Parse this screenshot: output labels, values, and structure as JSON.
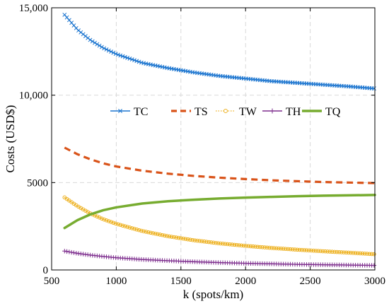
{
  "chart_data": {
    "type": "line",
    "xlabel": "k (spots/km)",
    "ylabel": "Costs (USD$)",
    "xlim": [
      500,
      3000
    ],
    "ylim": [
      0,
      15000
    ],
    "xticks": [
      500,
      1000,
      1500,
      2000,
      2500,
      3000
    ],
    "xtick_labels": [
      "500",
      "1000",
      "1500",
      "2000",
      "2500",
      "3000"
    ],
    "yticks": [
      0,
      5000,
      10000,
      15000
    ],
    "ytick_labels": [
      "0",
      "5000",
      "10,000",
      "15,000"
    ],
    "grid": true,
    "legend_position": "center",
    "legend_orientation": "horizontal",
    "x": [
      600,
      700,
      800,
      900,
      1000,
      1200,
      1400,
      1600,
      1800,
      2000,
      2200,
      2400,
      2600,
      2800,
      3000
    ],
    "series": [
      {
        "name": "TC",
        "color": "#1f77d0",
        "style": "solid",
        "marker": "x",
        "values": [
          14600,
          13750,
          13150,
          12700,
          12350,
          11850,
          11550,
          11300,
          11100,
          10950,
          10800,
          10700,
          10600,
          10500,
          10380
        ]
      },
      {
        "name": "TS",
        "color": "#d95319",
        "style": "dashed",
        "marker": "none",
        "values": [
          7000,
          6620,
          6330,
          6100,
          5920,
          5680,
          5510,
          5380,
          5280,
          5200,
          5130,
          5080,
          5030,
          5000,
          4970
        ]
      },
      {
        "name": "TW",
        "color": "#edb120",
        "style": "dotted",
        "marker": "o",
        "values": [
          4150,
          3650,
          3230,
          2900,
          2640,
          2230,
          1930,
          1700,
          1520,
          1380,
          1260,
          1160,
          1070,
          990,
          900
        ]
      },
      {
        "name": "TH",
        "color": "#7e2f8e",
        "style": "solid",
        "marker": "+",
        "values": [
          1080,
          950,
          850,
          770,
          700,
          600,
          530,
          470,
          420,
          380,
          350,
          320,
          300,
          280,
          260
        ]
      },
      {
        "name": "TQ",
        "color": "#77ac30",
        "style": "solid-thick",
        "marker": "none",
        "values": [
          2400,
          2850,
          3180,
          3420,
          3580,
          3800,
          3930,
          4020,
          4090,
          4140,
          4180,
          4220,
          4250,
          4270,
          4290
        ]
      }
    ]
  }
}
